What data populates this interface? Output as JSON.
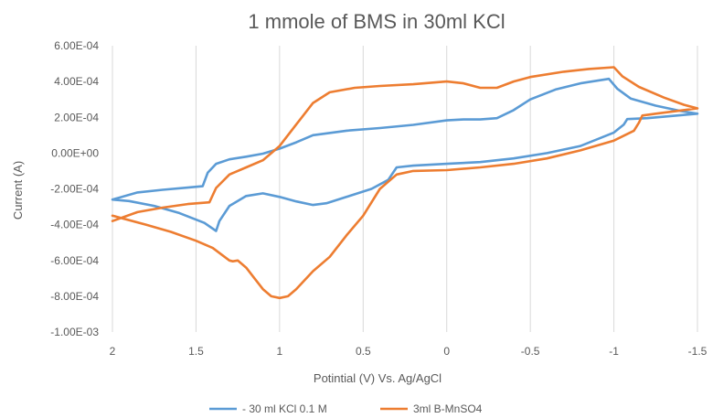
{
  "chart_data": {
    "type": "line",
    "title": "1 mmole of BMS in 30ml KCl",
    "xlabel": "Potintial (V) Vs. Ag/AgCl",
    "ylabel": "Current (A)",
    "x_reversed": true,
    "xlim": [
      2,
      -1.5
    ],
    "ylim": [
      -0.001,
      0.0006
    ],
    "x_ticks": [
      {
        "value": 2,
        "label": "2"
      },
      {
        "value": 1.5,
        "label": "1.5"
      },
      {
        "value": 1,
        "label": "1"
      },
      {
        "value": 0.5,
        "label": "0.5"
      },
      {
        "value": 0,
        "label": "0"
      },
      {
        "value": -0.5,
        "label": "-0.5"
      },
      {
        "value": -1,
        "label": "-1"
      },
      {
        "value": -1.5,
        "label": "-1.5"
      }
    ],
    "y_ticks": [
      {
        "value": 0.0006,
        "label": "6.00E-04"
      },
      {
        "value": 0.0004,
        "label": "4.00E-04"
      },
      {
        "value": 0.0002,
        "label": "2.00E-04"
      },
      {
        "value": 0.0,
        "label": "0.00E+00"
      },
      {
        "value": -0.0002,
        "label": "-2.00E-04"
      },
      {
        "value": -0.0004,
        "label": "-4.00E-04"
      },
      {
        "value": -0.0006,
        "label": "-6.00E-04"
      },
      {
        "value": -0.0008,
        "label": "-8.00E-04"
      },
      {
        "value": -0.001,
        "label": "-1.00E-03"
      }
    ],
    "grid": "vertical",
    "legend_position": "bottom",
    "series": [
      {
        "name": "- 30 ml KCl 0.1 M",
        "color": "#5b9bd5",
        "points": [
          [
            2.0,
            -0.00026
          ],
          [
            1.85,
            -0.00022
          ],
          [
            1.7,
            -0.000205
          ],
          [
            1.55,
            -0.000193
          ],
          [
            1.46,
            -0.000185
          ],
          [
            1.43,
            -0.00011
          ],
          [
            1.38,
            -6e-05
          ],
          [
            1.3,
            -3.5e-05
          ],
          [
            1.2,
            -2e-05
          ],
          [
            1.1,
            -3e-06
          ],
          [
            1.0,
            2.5e-05
          ],
          [
            0.9,
            6e-05
          ],
          [
            0.8,
            0.0001
          ],
          [
            0.6,
            0.000125
          ],
          [
            0.4,
            0.00014
          ],
          [
            0.2,
            0.000158
          ],
          [
            0.0,
            0.000183
          ],
          [
            -0.1,
            0.000188
          ],
          [
            -0.2,
            0.000188
          ],
          [
            -0.3,
            0.000195
          ],
          [
            -0.4,
            0.00024
          ],
          [
            -0.5,
            0.0003
          ],
          [
            -0.65,
            0.000355
          ],
          [
            -0.8,
            0.00039
          ],
          [
            -0.97,
            0.000415
          ],
          [
            -1.02,
            0.00036
          ],
          [
            -1.1,
            0.000305
          ],
          [
            -1.25,
            0.000265
          ],
          [
            -1.4,
            0.000235
          ],
          [
            -1.5,
            0.00022
          ],
          [
            -1.4,
            0.000212
          ],
          [
            -1.2,
            0.000195
          ],
          [
            -1.08,
            0.00019
          ],
          [
            -1.06,
            0.00016
          ],
          [
            -1.0,
            0.000115
          ],
          [
            -0.8,
            4e-05
          ],
          [
            -0.6,
            0.0
          ],
          [
            -0.4,
            -3e-05
          ],
          [
            -0.2,
            -5e-05
          ],
          [
            0.0,
            -6e-05
          ],
          [
            0.2,
            -7e-05
          ],
          [
            0.3,
            -8e-05
          ],
          [
            0.35,
            -0.00015
          ],
          [
            0.45,
            -0.0002
          ],
          [
            0.6,
            -0.000245
          ],
          [
            0.72,
            -0.00028
          ],
          [
            0.8,
            -0.00029
          ],
          [
            0.9,
            -0.00027
          ],
          [
            1.0,
            -0.000245
          ],
          [
            1.1,
            -0.000225
          ],
          [
            1.2,
            -0.00024
          ],
          [
            1.3,
            -0.000295
          ],
          [
            1.36,
            -0.00038
          ],
          [
            1.38,
            -0.000435
          ],
          [
            1.45,
            -0.00039
          ],
          [
            1.6,
            -0.000335
          ],
          [
            1.75,
            -0.000295
          ],
          [
            1.9,
            -0.000268
          ],
          [
            2.0,
            -0.00026
          ]
        ]
      },
      {
        "name": "3ml B-MnSO4",
        "color": "#ed7d31",
        "points": [
          [
            2.0,
            -0.00038
          ],
          [
            1.85,
            -0.00033
          ],
          [
            1.7,
            -0.000305
          ],
          [
            1.55,
            -0.000285
          ],
          [
            1.42,
            -0.000275
          ],
          [
            1.38,
            -0.000195
          ],
          [
            1.3,
            -0.00012
          ],
          [
            1.2,
            -8e-05
          ],
          [
            1.1,
            -4e-05
          ],
          [
            1.0,
            4e-05
          ],
          [
            0.9,
            0.00016
          ],
          [
            0.8,
            0.00028
          ],
          [
            0.7,
            0.00034
          ],
          [
            0.55,
            0.000365
          ],
          [
            0.4,
            0.000375
          ],
          [
            0.2,
            0.000385
          ],
          [
            0.0,
            0.0004
          ],
          [
            -0.1,
            0.00039
          ],
          [
            -0.2,
            0.000365
          ],
          [
            -0.3,
            0.000365
          ],
          [
            -0.4,
            0.0004
          ],
          [
            -0.5,
            0.000425
          ],
          [
            -0.7,
            0.000455
          ],
          [
            -0.85,
            0.00047
          ],
          [
            -1.0,
            0.00048
          ],
          [
            -1.05,
            0.00043
          ],
          [
            -1.15,
            0.00037
          ],
          [
            -1.3,
            0.00031
          ],
          [
            -1.42,
            0.00027
          ],
          [
            -1.5,
            0.00025
          ],
          [
            -1.4,
            0.000238
          ],
          [
            -1.25,
            0.00022
          ],
          [
            -1.17,
            0.00021
          ],
          [
            -1.15,
            0.00017
          ],
          [
            -1.12,
            0.000125
          ],
          [
            -1.0,
            7e-05
          ],
          [
            -0.8,
            1.5e-05
          ],
          [
            -0.6,
            -3e-05
          ],
          [
            -0.4,
            -6e-05
          ],
          [
            -0.2,
            -8e-05
          ],
          [
            0.0,
            -9.5e-05
          ],
          [
            0.2,
            -0.0001
          ],
          [
            0.3,
            -0.00012
          ],
          [
            0.4,
            -0.0002
          ],
          [
            0.5,
            -0.00035
          ],
          [
            0.6,
            -0.00046
          ],
          [
            0.7,
            -0.00058
          ],
          [
            0.8,
            -0.00066
          ],
          [
            0.9,
            -0.00076
          ],
          [
            0.95,
            -0.0008
          ],
          [
            1.0,
            -0.00081
          ],
          [
            1.05,
            -0.0008
          ],
          [
            1.1,
            -0.00076
          ],
          [
            1.15,
            -0.0007
          ],
          [
            1.2,
            -0.00064
          ],
          [
            1.25,
            -0.0006
          ],
          [
            1.28,
            -0.000605
          ],
          [
            1.3,
            -0.0006
          ],
          [
            1.4,
            -0.00053
          ],
          [
            1.5,
            -0.00049
          ],
          [
            1.65,
            -0.00044
          ],
          [
            1.8,
            -0.0004
          ],
          [
            2.0,
            -0.00035
          ]
        ]
      }
    ]
  }
}
